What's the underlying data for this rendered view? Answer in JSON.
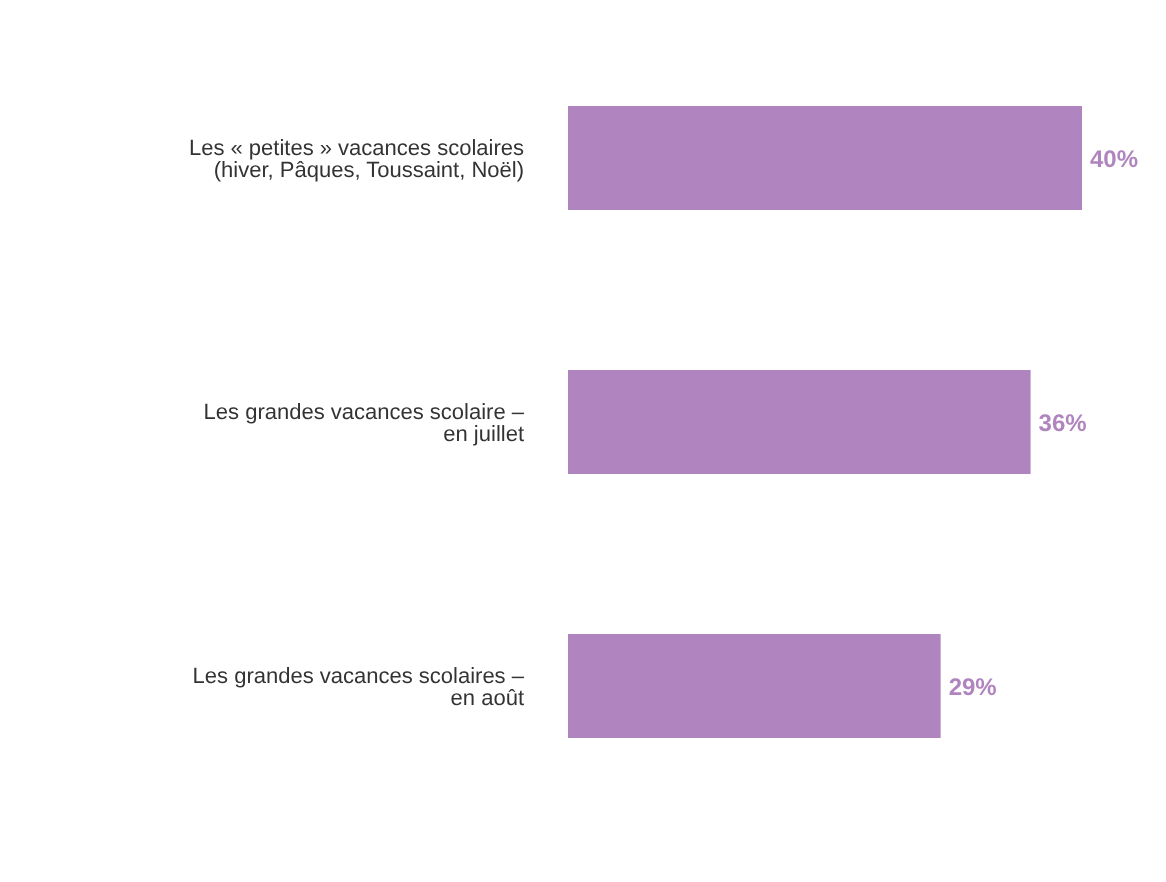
{
  "chart_data": {
    "type": "bar",
    "orientation": "horizontal",
    "categories": [
      "Les « petites » vacances scolaires (hiver, Pâques, Toussaint, Noël)",
      "Les grandes vacances scolaire – en juillet",
      "Les grandes vacances scolaires – en août"
    ],
    "values": [
      40,
      36,
      29
    ],
    "value_labels": [
      "40%",
      "36%",
      "29%"
    ],
    "color": "#b085bf"
  }
}
